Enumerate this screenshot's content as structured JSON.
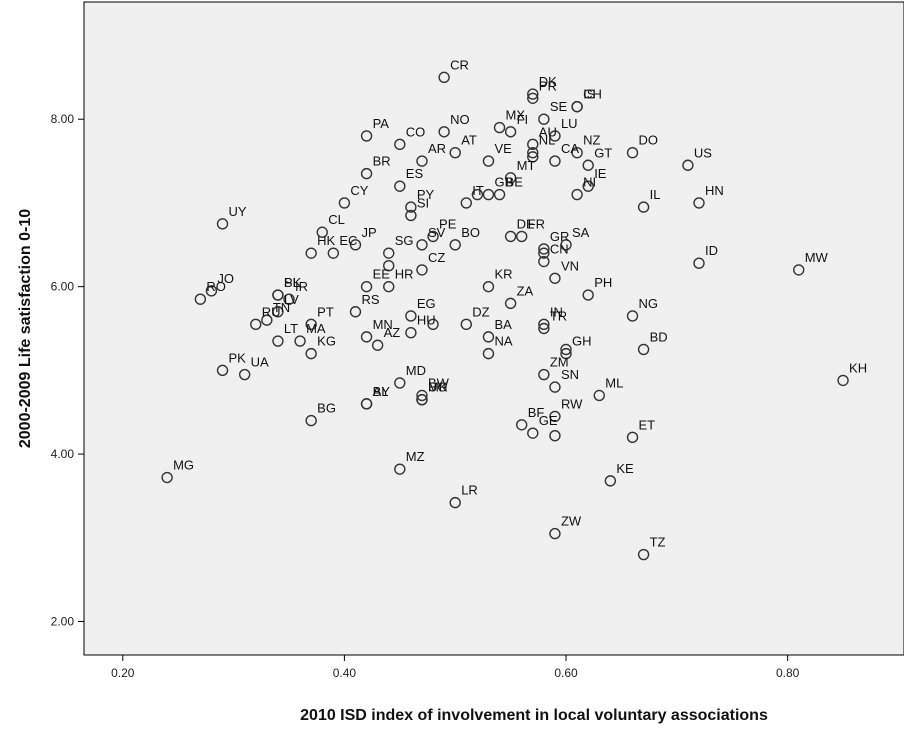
{
  "chart_data": {
    "type": "scatter",
    "title": "",
    "xlabel": "2010 ISD index of involvement in local voluntary associations",
    "ylabel": "2000-2009 Life satisfaction 0-10",
    "xlim": [
      0.165,
      0.905
    ],
    "ylim": [
      1.6,
      9.4
    ],
    "xticks": [
      0.2,
      0.4,
      0.6,
      0.8
    ],
    "xtick_labels": [
      "0.20",
      "0.40",
      "0.60",
      "0.80"
    ],
    "yticks": [
      2,
      4,
      6,
      8
    ],
    "ytick_labels": [
      "2.00",
      "4.00",
      "6.00",
      "8.00"
    ],
    "grid": false,
    "plot_background": "#f0f0f0",
    "marker_color": "#333333",
    "points": [
      {
        "label": "CR",
        "x": 0.49,
        "y": 8.5
      },
      {
        "label": "DK",
        "x": 0.57,
        "y": 8.3
      },
      {
        "label": "PR",
        "x": 0.57,
        "y": 8.25
      },
      {
        "label": "IS",
        "x": 0.61,
        "y": 8.15
      },
      {
        "label": "CH",
        "x": 0.61,
        "y": 8.15
      },
      {
        "label": "SE",
        "x": 0.58,
        "y": 8.0
      },
      {
        "label": "MX",
        "x": 0.54,
        "y": 7.9
      },
      {
        "label": "FI",
        "x": 0.55,
        "y": 7.85
      },
      {
        "label": "NO",
        "x": 0.49,
        "y": 7.85
      },
      {
        "label": "AU",
        "x": 0.57,
        "y": 7.7
      },
      {
        "label": "LU",
        "x": 0.59,
        "y": 7.8
      },
      {
        "label": "PA",
        "x": 0.42,
        "y": 7.8
      },
      {
        "label": "CO",
        "x": 0.45,
        "y": 7.7
      },
      {
        "label": "AT",
        "x": 0.5,
        "y": 7.6
      },
      {
        "label": "DO",
        "x": 0.66,
        "y": 7.6
      },
      {
        "label": "NZ",
        "x": 0.61,
        "y": 7.6
      },
      {
        "label": "US",
        "x": 0.71,
        "y": 7.45
      },
      {
        "label": "VE",
        "x": 0.53,
        "y": 7.5
      },
      {
        "label": "NL",
        "x": 0.57,
        "y": 7.6
      },
      {
        "label": "AR",
        "x": 0.47,
        "y": 7.5
      },
      {
        "label": "CA",
        "x": 0.59,
        "y": 7.5
      },
      {
        "label": "GT",
        "x": 0.62,
        "y": 7.45
      },
      {
        "label": "MT",
        "x": 0.55,
        "y": 7.3
      },
      {
        "label": "BR",
        "x": 0.42,
        "y": 7.35
      },
      {
        "label": "ES",
        "x": 0.45,
        "y": 7.2
      },
      {
        "label": "HN",
        "x": 0.72,
        "y": 7.0
      },
      {
        "label": "BE",
        "x": 0.54,
        "y": 7.1
      },
      {
        "label": "IE",
        "x": 0.62,
        "y": 7.2
      },
      {
        "label": "IL",
        "x": 0.67,
        "y": 6.95
      },
      {
        "label": "CY",
        "x": 0.4,
        "y": 7.0
      },
      {
        "label": "GB",
        "x": 0.53,
        "y": 7.1
      },
      {
        "label": "PY",
        "x": 0.46,
        "y": 6.95
      },
      {
        "label": "NI",
        "x": 0.61,
        "y": 7.1
      },
      {
        "label": "UY",
        "x": 0.29,
        "y": 6.75
      },
      {
        "label": "CL",
        "x": 0.38,
        "y": 6.65
      },
      {
        "label": "IT",
        "x": 0.51,
        "y": 7.0
      },
      {
        "label": "SI",
        "x": 0.46,
        "y": 6.85
      },
      {
        "label": "DE",
        "x": 0.55,
        "y": 6.6
      },
      {
        "label": "FR",
        "x": 0.56,
        "y": 6.6
      },
      {
        "label": "SA",
        "x": 0.6,
        "y": 6.5
      },
      {
        "label": "BO",
        "x": 0.5,
        "y": 6.5
      },
      {
        "label": "JP",
        "x": 0.41,
        "y": 6.5
      },
      {
        "label": "SG",
        "x": 0.44,
        "y": 6.4
      },
      {
        "label": "SV",
        "x": 0.47,
        "y": 6.5
      },
      {
        "label": "PE",
        "x": 0.48,
        "y": 6.6
      },
      {
        "label": "GR",
        "x": 0.58,
        "y": 6.45
      },
      {
        "label": "CN",
        "x": 0.58,
        "y": 6.3
      },
      {
        "label": "ID",
        "x": 0.72,
        "y": 6.28
      },
      {
        "label": "MW",
        "x": 0.81,
        "y": 6.2
      },
      {
        "label": "HK",
        "x": 0.37,
        "y": 6.4
      },
      {
        "label": "EC",
        "x": 0.39,
        "y": 6.4
      },
      {
        "label": "CZ",
        "x": 0.47,
        "y": 6.2
      },
      {
        "label": "PL",
        "x": 0.34,
        "y": 5.9
      },
      {
        "label": "KR",
        "x": 0.53,
        "y": 6.0
      },
      {
        "label": "VN",
        "x": 0.59,
        "y": 6.1
      },
      {
        "label": "JO",
        "x": 0.28,
        "y": 5.95
      },
      {
        "label": "SK",
        "x": 0.34,
        "y": 5.9
      },
      {
        "label": "IR",
        "x": 0.35,
        "y": 5.85
      },
      {
        "label": "EE",
        "x": 0.42,
        "y": 6.0
      },
      {
        "label": "PH",
        "x": 0.62,
        "y": 5.9
      },
      {
        "label": "RO",
        "x": 0.27,
        "y": 5.85
      },
      {
        "label": "HR",
        "x": 0.44,
        "y": 6.0
      },
      {
        "label": "EG",
        "x": 0.46,
        "y": 5.65
      },
      {
        "label": "NG",
        "x": 0.66,
        "y": 5.65
      },
      {
        "label": "ZA",
        "x": 0.55,
        "y": 5.8
      },
      {
        "label": "TN",
        "x": 0.33,
        "y": 5.6
      },
      {
        "label": "LV",
        "x": 0.34,
        "y": 5.7
      },
      {
        "label": "PT",
        "x": 0.37,
        "y": 5.55
      },
      {
        "label": "TR",
        "x": 0.58,
        "y": 5.5
      },
      {
        "label": "RU",
        "x": 0.32,
        "y": 5.55
      },
      {
        "label": "RS",
        "x": 0.41,
        "y": 5.7
      },
      {
        "label": "MN",
        "x": 0.42,
        "y": 5.4
      },
      {
        "label": "DZ",
        "x": 0.51,
        "y": 5.55
      },
      {
        "label": "BD",
        "x": 0.67,
        "y": 5.25
      },
      {
        "label": "LT",
        "x": 0.34,
        "y": 5.35
      },
      {
        "label": "AZ",
        "x": 0.43,
        "y": 5.3
      },
      {
        "label": "GH",
        "x": 0.6,
        "y": 5.2
      },
      {
        "label": "MA",
        "x": 0.36,
        "y": 5.35
      },
      {
        "label": "HU",
        "x": 0.46,
        "y": 5.45
      },
      {
        "label": "BA",
        "x": 0.53,
        "y": 5.4
      },
      {
        "label": "IN",
        "x": 0.58,
        "y": 5.55
      },
      {
        "label": "PK",
        "x": 0.29,
        "y": 5.0
      },
      {
        "label": "KG",
        "x": 0.37,
        "y": 5.2
      },
      {
        "label": "KH",
        "x": 0.85,
        "y": 4.88
      },
      {
        "label": "UA",
        "x": 0.31,
        "y": 4.95
      },
      {
        "label": "MD",
        "x": 0.45,
        "y": 4.85
      },
      {
        "label": "ML",
        "x": 0.63,
        "y": 4.7
      },
      {
        "label": "NA",
        "x": 0.53,
        "y": 5.2
      },
      {
        "label": "ZM",
        "x": 0.58,
        "y": 4.95
      },
      {
        "label": "BY",
        "x": 0.42,
        "y": 4.6
      },
      {
        "label": "BW",
        "x": 0.47,
        "y": 4.7
      },
      {
        "label": "UG",
        "x": 0.47,
        "y": 4.65
      },
      {
        "label": "SN",
        "x": 0.59,
        "y": 4.8
      },
      {
        "label": "BG",
        "x": 0.37,
        "y": 4.4
      },
      {
        "label": "AL",
        "x": 0.42,
        "y": 4.6
      },
      {
        "label": "MK",
        "x": 0.47,
        "y": 4.65
      },
      {
        "label": "BF",
        "x": 0.56,
        "y": 4.35
      },
      {
        "label": "RW",
        "x": 0.59,
        "y": 4.45
      },
      {
        "label": "ET",
        "x": 0.66,
        "y": 4.2
      },
      {
        "label": "GE",
        "x": 0.57,
        "y": 4.25
      },
      {
        "label": "MZ",
        "x": 0.45,
        "y": 3.82
      },
      {
        "label": "KE",
        "x": 0.64,
        "y": 3.68
      },
      {
        "label": "MG",
        "x": 0.24,
        "y": 3.72
      },
      {
        "label": "LR",
        "x": 0.5,
        "y": 3.42
      },
      {
        "label": "ZW",
        "x": 0.59,
        "y": 3.05
      },
      {
        "label": "TZ",
        "x": 0.67,
        "y": 2.8
      }
    ],
    "extra_markers": [
      {
        "x": 0.59,
        "y": 4.22
      },
      {
        "x": 0.48,
        "y": 5.55
      },
      {
        "x": 0.57,
        "y": 7.55
      },
      {
        "x": 0.52,
        "y": 7.1
      },
      {
        "x": 0.58,
        "y": 6.4
      },
      {
        "x": 0.6,
        "y": 5.25
      },
      {
        "x": 0.44,
        "y": 6.25
      }
    ]
  }
}
